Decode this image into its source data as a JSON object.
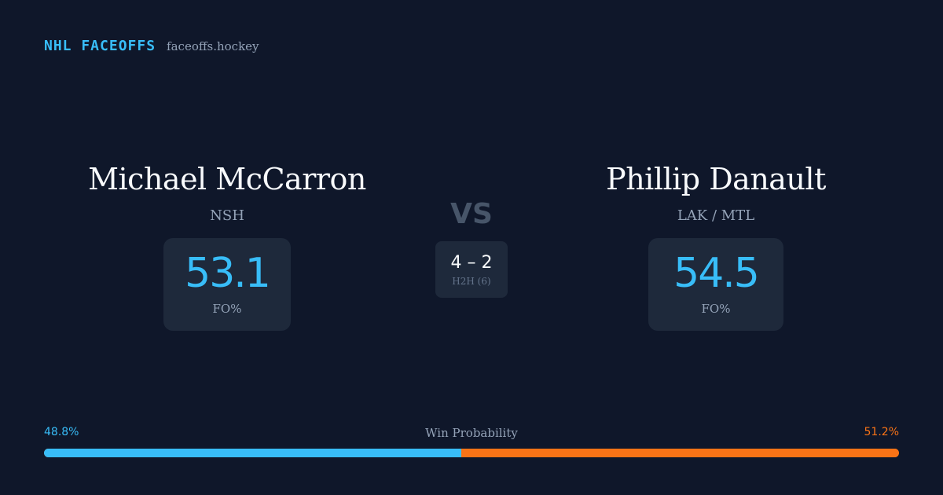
{
  "brand": {
    "title": "NHL FACEOFFS",
    "domain": "faceoffs.hockey"
  },
  "player_left": {
    "name": "Michael McCarron",
    "team": "NSH",
    "fo_value": "53.1",
    "fo_label": "FO%"
  },
  "player_right": {
    "name": "Phillip Danault",
    "team": "LAK / MTL",
    "fo_value": "54.5",
    "fo_label": "FO%"
  },
  "versus": {
    "label": "VS",
    "h2h_score": "4 – 2",
    "h2h_label": "H2H (6)"
  },
  "win_probability": {
    "title": "Win Probability",
    "left_label": "48.8%",
    "right_label": "51.2%",
    "left_value": 48.8,
    "right_value": 51.2,
    "left_color": "#38bdf8",
    "right_color": "#f97316"
  }
}
